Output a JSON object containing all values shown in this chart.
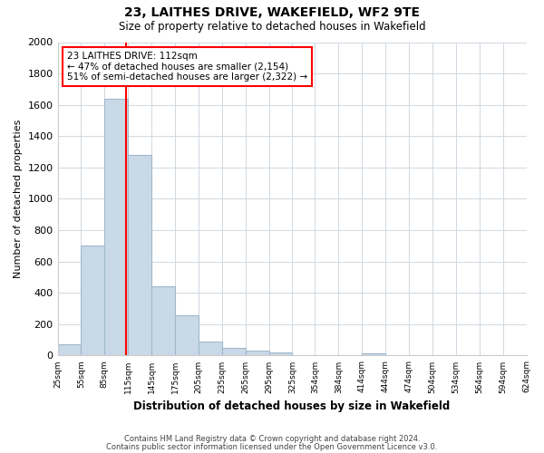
{
  "title": "23, LAITHES DRIVE, WAKEFIELD, WF2 9TE",
  "subtitle": "Size of property relative to detached houses in Wakefield",
  "xlabel": "Distribution of detached houses by size in Wakefield",
  "ylabel": "Number of detached properties",
  "bar_color": "#c9d9e8",
  "bar_edge_color": "#a0b8cc",
  "grid_color": "#d0d8e0",
  "vline_x": 112,
  "vline_color": "red",
  "annotation_title": "23 LAITHES DRIVE: 112sqm",
  "annotation_line1": "← 47% of detached houses are smaller (2,154)",
  "annotation_line2": "51% of semi-detached houses are larger (2,322) →",
  "annotation_box_color": "red",
  "footnote1": "Contains HM Land Registry data © Crown copyright and database right 2024.",
  "footnote2": "Contains public sector information licensed under the Open Government Licence v3.0.",
  "bins": [
    25,
    55,
    85,
    115,
    145,
    175,
    205,
    235,
    265,
    295,
    325,
    354,
    384,
    414,
    444,
    474,
    504,
    534,
    564,
    594,
    624
  ],
  "counts": [
    70,
    700,
    1640,
    1280,
    440,
    255,
    90,
    50,
    30,
    20,
    5,
    0,
    0,
    15,
    0,
    0,
    0,
    0,
    0,
    0
  ],
  "ylim": [
    0,
    2000
  ],
  "yticks": [
    0,
    200,
    400,
    600,
    800,
    1000,
    1200,
    1400,
    1600,
    1800,
    2000
  ],
  "background_color": "#ffffff",
  "figsize": [
    6.0,
    5.0
  ],
  "dpi": 100
}
